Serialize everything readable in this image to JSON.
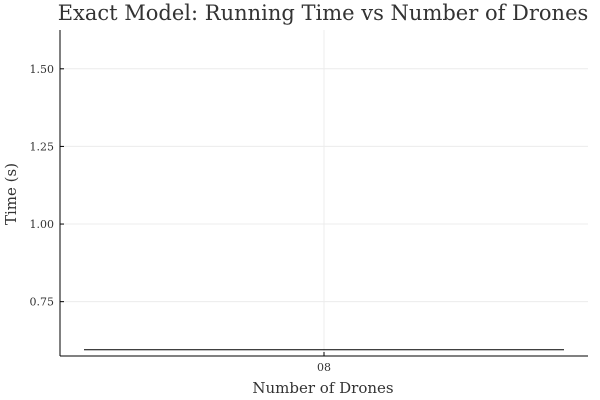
{
  "chart_data": {
    "type": "line",
    "title": "Exact Model: Running Time vs Number of Drones",
    "xlabel": "Number of Drones",
    "ylabel": "Time (s)",
    "x_ticks": [
      {
        "value": 0,
        "label": "08"
      }
    ],
    "y_ticks": [
      {
        "value": 0.75,
        "label": "0.75"
      },
      {
        "value": 1.0,
        "label": "1.00"
      },
      {
        "value": 1.25,
        "label": "1.25"
      },
      {
        "value": 1.5,
        "label": "1.50"
      }
    ],
    "xlim": [
      -0.55,
      0.55
    ],
    "ylim": [
      0.575,
      1.625
    ],
    "grid": true,
    "series": [
      {
        "color": "#000000",
        "x": [
          -0.5,
          0.5
        ],
        "y": [
          0.595,
          0.595
        ]
      }
    ]
  }
}
